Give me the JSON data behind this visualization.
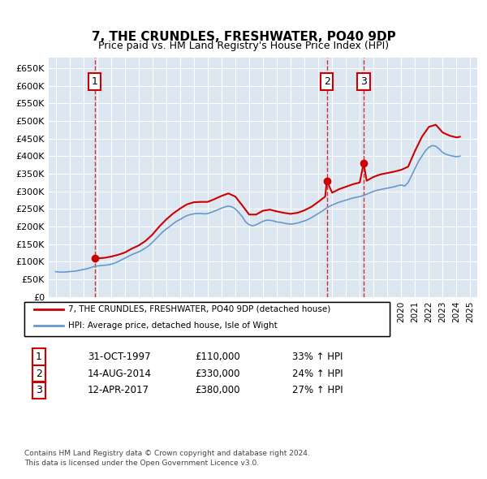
{
  "title": "7, THE CRUNDLES, FRESHWATER, PO40 9DP",
  "subtitle": "Price paid vs. HM Land Registry's House Price Index (HPI)",
  "ylabel": "",
  "background_color": "#dce6f1",
  "plot_bg_color": "#dce6f1",
  "ylim": [
    0,
    680000
  ],
  "yticks": [
    0,
    50000,
    100000,
    150000,
    200000,
    250000,
    300000,
    350000,
    400000,
    450000,
    500000,
    550000,
    600000,
    650000
  ],
  "ytick_labels": [
    "£0",
    "£50K",
    "£100K",
    "£150K",
    "£200K",
    "£250K",
    "£300K",
    "£350K",
    "£400K",
    "£450K",
    "£500K",
    "£550K",
    "£600K",
    "£650K"
  ],
  "sale_color": "#cc0000",
  "hpi_color": "#6699cc",
  "sale_dot_color": "#cc0000",
  "vline_color": "#cc0000",
  "box_color": "#cc0000",
  "legend_sale_label": "7, THE CRUNDLES, FRESHWATER, PO40 9DP (detached house)",
  "legend_hpi_label": "HPI: Average price, detached house, Isle of Wight",
  "transactions": [
    {
      "id": 1,
      "date": "31-OCT-1997",
      "price": 110000,
      "pct": "33%",
      "year_x": 1997.83
    },
    {
      "id": 2,
      "date": "14-AUG-2014",
      "price": 330000,
      "pct": "24%",
      "year_x": 2014.62
    },
    {
      "id": 3,
      "date": "12-APR-2017",
      "price": 380000,
      "pct": "27%",
      "year_x": 2017.28
    }
  ],
  "footnote1": "Contains HM Land Registry data © Crown copyright and database right 2024.",
  "footnote2": "This data is licensed under the Open Government Licence v3.0.",
  "hpi_data": {
    "years": [
      1995.0,
      1995.25,
      1995.5,
      1995.75,
      1996.0,
      1996.25,
      1996.5,
      1996.75,
      1997.0,
      1997.25,
      1997.5,
      1997.75,
      1998.0,
      1998.25,
      1998.5,
      1998.75,
      1999.0,
      1999.25,
      1999.5,
      1999.75,
      2000.0,
      2000.25,
      2000.5,
      2000.75,
      2001.0,
      2001.25,
      2001.5,
      2001.75,
      2002.0,
      2002.25,
      2002.5,
      2002.75,
      2003.0,
      2003.25,
      2003.5,
      2003.75,
      2004.0,
      2004.25,
      2004.5,
      2004.75,
      2005.0,
      2005.25,
      2005.5,
      2005.75,
      2006.0,
      2006.25,
      2006.5,
      2006.75,
      2007.0,
      2007.25,
      2007.5,
      2007.75,
      2008.0,
      2008.25,
      2008.5,
      2008.75,
      2009.0,
      2009.25,
      2009.5,
      2009.75,
      2010.0,
      2010.25,
      2010.5,
      2010.75,
      2011.0,
      2011.25,
      2011.5,
      2011.75,
      2012.0,
      2012.25,
      2012.5,
      2012.75,
      2013.0,
      2013.25,
      2013.5,
      2013.75,
      2014.0,
      2014.25,
      2014.5,
      2014.75,
      2015.0,
      2015.25,
      2015.5,
      2015.75,
      2016.0,
      2016.25,
      2016.5,
      2016.75,
      2017.0,
      2017.25,
      2017.5,
      2017.75,
      2018.0,
      2018.25,
      2018.5,
      2018.75,
      2019.0,
      2019.25,
      2019.5,
      2019.75,
      2020.0,
      2020.25,
      2020.5,
      2020.75,
      2021.0,
      2021.25,
      2021.5,
      2021.75,
      2022.0,
      2022.25,
      2022.5,
      2022.75,
      2023.0,
      2023.25,
      2023.5,
      2023.75,
      2024.0,
      2024.25
    ],
    "values": [
      72000,
      71000,
      70500,
      71000,
      72000,
      73000,
      74000,
      76000,
      78000,
      80000,
      83000,
      86000,
      88000,
      89000,
      90000,
      91000,
      93000,
      96000,
      100000,
      105000,
      110000,
      115000,
      120000,
      124000,
      128000,
      133000,
      139000,
      146000,
      155000,
      165000,
      175000,
      185000,
      193000,
      200000,
      208000,
      215000,
      220000,
      226000,
      231000,
      234000,
      236000,
      237000,
      237000,
      236000,
      237000,
      240000,
      244000,
      248000,
      252000,
      256000,
      258000,
      256000,
      250000,
      240000,
      228000,
      213000,
      205000,
      202000,
      205000,
      210000,
      215000,
      218000,
      218000,
      216000,
      213000,
      212000,
      210000,
      208000,
      207000,
      208000,
      210000,
      213000,
      216000,
      220000,
      225000,
      231000,
      237000,
      243000,
      250000,
      256000,
      261000,
      265000,
      269000,
      272000,
      275000,
      278000,
      281000,
      283000,
      285000,
      288000,
      292000,
      296000,
      300000,
      303000,
      305000,
      307000,
      309000,
      311000,
      313000,
      316000,
      318000,
      315000,
      325000,
      345000,
      365000,
      385000,
      400000,
      415000,
      425000,
      430000,
      428000,
      420000,
      410000,
      405000,
      402000,
      400000,
      398000,
      400000
    ]
  },
  "sale_hpi_line": {
    "years": [
      1997.83,
      1997.83,
      1998.0,
      1998.5,
      1999.0,
      1999.5,
      2000.0,
      2000.5,
      2001.0,
      2001.5,
      2002.0,
      2002.5,
      2003.0,
      2003.5,
      2004.0,
      2004.5,
      2005.0,
      2005.5,
      2006.0,
      2006.5,
      2007.0,
      2007.5,
      2008.0,
      2008.5,
      2009.0,
      2009.5,
      2010.0,
      2010.5,
      2011.0,
      2011.5,
      2012.0,
      2012.5,
      2013.0,
      2013.5,
      2014.0,
      2014.5,
      2014.62,
      2014.62,
      2015.0,
      2015.5,
      2016.0,
      2016.5,
      2017.0,
      2017.28,
      2017.28,
      2017.5,
      2018.0,
      2018.5,
      2019.0,
      2019.5,
      2020.0,
      2020.5,
      2021.0,
      2021.5,
      2022.0,
      2022.5,
      2023.0,
      2023.5,
      2024.0,
      2024.25
    ],
    "values": [
      110000,
      110000,
      110000,
      111000,
      114500,
      119500,
      126000,
      137000,
      146000,
      159000,
      177000,
      200000,
      220000,
      237000,
      251000,
      263000,
      269000,
      270000,
      270000,
      278000,
      287000,
      294000,
      285000,
      260000,
      234000,
      234000,
      245000,
      248000,
      243000,
      239000,
      236000,
      239000,
      246000,
      256000,
      270000,
      285000,
      330000,
      330000,
      296000,
      306000,
      313000,
      320000,
      325000,
      380000,
      380000,
      330000,
      341000,
      348000,
      352000,
      356000,
      361000,
      370000,
      415000,
      455000,
      483000,
      489000,
      467000,
      458000,
      453000,
      455000
    ]
  },
  "xlim": [
    1994.5,
    2025.5
  ],
  "xticks": [
    1995,
    1996,
    1997,
    1998,
    1999,
    2000,
    2001,
    2002,
    2003,
    2004,
    2005,
    2006,
    2007,
    2008,
    2009,
    2010,
    2011,
    2012,
    2013,
    2014,
    2015,
    2016,
    2017,
    2018,
    2019,
    2020,
    2021,
    2022,
    2023,
    2024,
    2025
  ]
}
